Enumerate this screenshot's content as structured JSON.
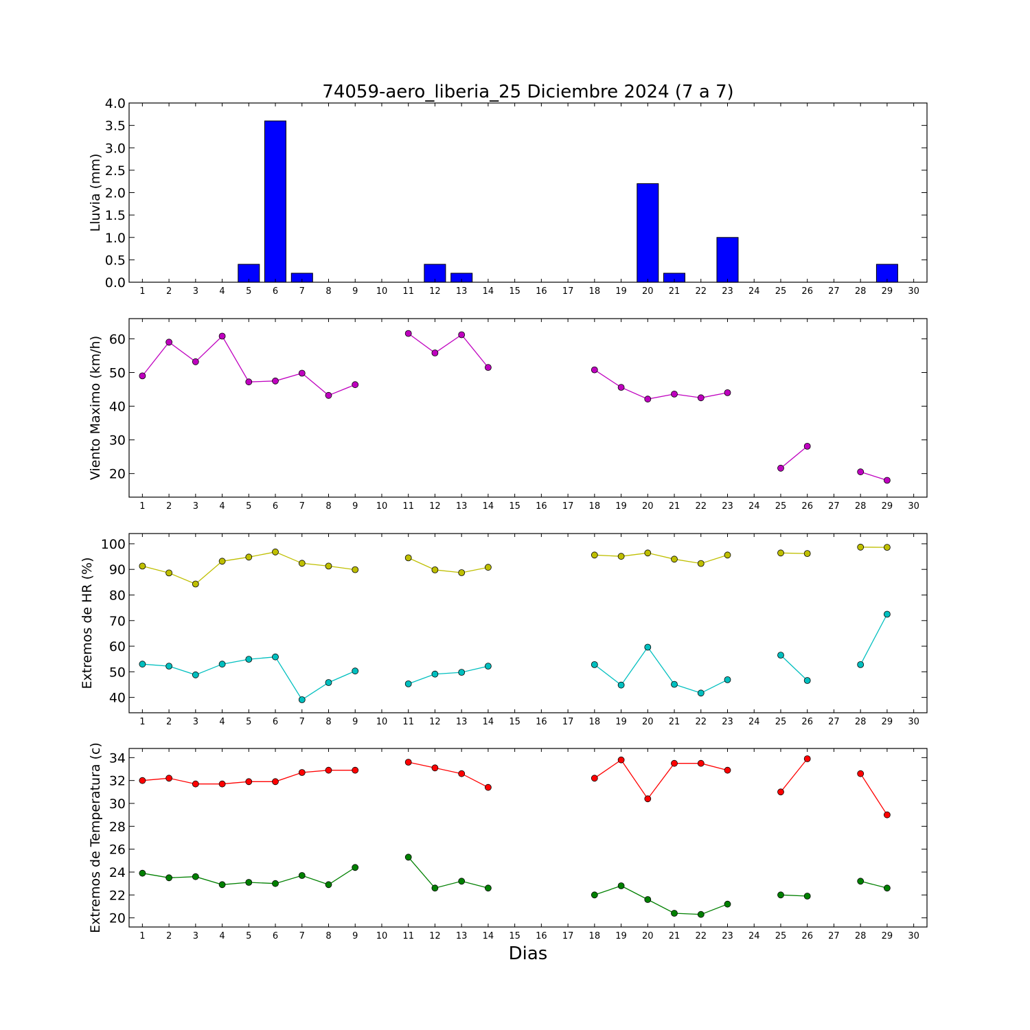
{
  "figure": {
    "title": "74059-aero_liberia_25 Diciembre 2024  (7 a 7)",
    "xlabel": "Dias",
    "x_ticks": [
      1,
      2,
      3,
      4,
      5,
      6,
      7,
      8,
      9,
      10,
      11,
      12,
      13,
      14,
      15,
      16,
      17,
      18,
      19,
      20,
      21,
      22,
      23,
      24,
      25,
      26,
      27,
      28,
      29,
      30
    ]
  },
  "chart_data": [
    {
      "type": "bar",
      "ylabel": "Lluvia (mm)",
      "ylim": [
        0,
        4
      ],
      "yticks": [
        "0.0",
        "0.5",
        "1.0",
        "1.5",
        "2.0",
        "2.5",
        "3.0",
        "3.5",
        "4.0"
      ],
      "xlim": [
        0.5,
        30.5
      ],
      "grid": false,
      "categories": [
        1,
        2,
        3,
        4,
        5,
        6,
        7,
        8,
        9,
        10,
        11,
        12,
        13,
        14,
        15,
        16,
        17,
        18,
        19,
        20,
        21,
        22,
        23,
        24,
        25,
        26,
        27,
        28,
        29,
        30
      ],
      "values": [
        0,
        0,
        0,
        0,
        0.4,
        3.6,
        0.2,
        0,
        0,
        0,
        0,
        0.4,
        0.2,
        0,
        0,
        0,
        0,
        0,
        0,
        2.2,
        0.2,
        0,
        1.0,
        0,
        0,
        0,
        0,
        0,
        0.4,
        null
      ],
      "color": "#0000ff"
    },
    {
      "type": "line",
      "ylabel": "Viento Maximo (km/h)",
      "ylim": [
        13,
        66
      ],
      "yticks": [
        20,
        30,
        40,
        50,
        60
      ],
      "xlim": [
        0.5,
        30.5
      ],
      "grid": false,
      "x": [
        1,
        2,
        3,
        4,
        5,
        6,
        7,
        8,
        9,
        10,
        11,
        12,
        13,
        14,
        15,
        16,
        17,
        18,
        19,
        20,
        21,
        22,
        23,
        24,
        25,
        26,
        27,
        28,
        29,
        30
      ],
      "series": [
        {
          "color": "#bf00bf",
          "values": [
            49,
            59,
            53.2,
            60.8,
            47.2,
            47.5,
            49.8,
            43.2,
            46.4,
            null,
            61.6,
            55.8,
            61.2,
            51.5,
            null,
            null,
            null,
            50.8,
            45.6,
            42.1,
            43.6,
            42.5,
            44,
            null,
            21.6,
            28.1,
            null,
            20.5,
            18,
            null
          ]
        }
      ]
    },
    {
      "type": "line",
      "ylabel": "Extremos de HR (%)",
      "ylim": [
        34,
        104
      ],
      "yticks": [
        40,
        50,
        60,
        70,
        80,
        90,
        100
      ],
      "xlim": [
        0.5,
        30.5
      ],
      "grid": false,
      "x": [
        1,
        2,
        3,
        4,
        5,
        6,
        7,
        8,
        9,
        10,
        11,
        12,
        13,
        14,
        15,
        16,
        17,
        18,
        19,
        20,
        21,
        22,
        23,
        24,
        25,
        26,
        27,
        28,
        29,
        30
      ],
      "series": [
        {
          "color": "#bfbf00",
          "values": [
            91.3,
            88.6,
            84.3,
            93.2,
            94.8,
            96.8,
            92.4,
            91.3,
            89.9,
            null,
            94.5,
            89.8,
            88.7,
            90.8,
            null,
            null,
            null,
            95.6,
            95.1,
            96.4,
            94,
            92.3,
            95.6,
            null,
            96.4,
            96.2,
            null,
            98.7,
            98.6,
            null
          ]
        },
        {
          "color": "#00bfbf",
          "values": [
            53,
            52.2,
            48.8,
            53,
            54.9,
            55.8,
            39.1,
            45.8,
            50.3,
            null,
            45.3,
            49.1,
            49.8,
            52.2,
            null,
            null,
            null,
            52.8,
            44.8,
            59.6,
            45.1,
            41.7,
            46.9,
            null,
            56.5,
            46.6,
            null,
            52.8,
            72.5,
            null
          ]
        }
      ]
    },
    {
      "type": "line",
      "ylabel": "Extremos de Temperatura (c)",
      "ylim": [
        19.2,
        34.8
      ],
      "yticks": [
        20,
        22,
        24,
        26,
        28,
        30,
        32,
        34
      ],
      "xlim": [
        0.5,
        30.5
      ],
      "grid": false,
      "x": [
        1,
        2,
        3,
        4,
        5,
        6,
        7,
        8,
        9,
        10,
        11,
        12,
        13,
        14,
        15,
        16,
        17,
        18,
        19,
        20,
        21,
        22,
        23,
        24,
        25,
        26,
        27,
        28,
        29,
        30
      ],
      "series": [
        {
          "color": "#ff0000",
          "values": [
            32,
            32.2,
            31.7,
            31.7,
            31.9,
            31.9,
            32.7,
            32.9,
            32.9,
            null,
            33.6,
            33.1,
            32.6,
            31.4,
            null,
            null,
            null,
            32.2,
            33.8,
            30.4,
            33.5,
            33.5,
            32.9,
            null,
            31,
            33.9,
            null,
            32.6,
            29,
            null
          ]
        },
        {
          "color": "#008000",
          "values": [
            23.9,
            23.5,
            23.6,
            22.9,
            23.1,
            23,
            23.7,
            22.9,
            24.4,
            null,
            25.3,
            22.6,
            23.2,
            22.6,
            null,
            null,
            null,
            22,
            22.8,
            21.6,
            20.4,
            20.3,
            21.2,
            null,
            22,
            21.9,
            null,
            23.2,
            22.6,
            null
          ]
        }
      ]
    }
  ]
}
